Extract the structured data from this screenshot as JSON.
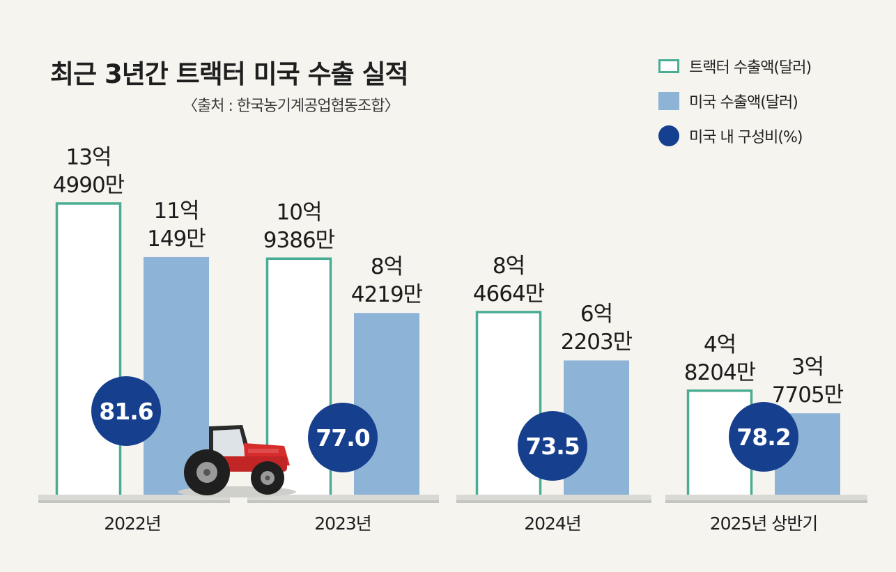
{
  "title": "최근 3년간 트랙터 미국 수출 실적",
  "source": "〈출처 : 한국농기계공업협동조합〉",
  "colors": {
    "tractor_outline": "#4aad93",
    "us_fill": "#8db3d6",
    "circle": "#163f8e",
    "background": "#f6f4ef"
  },
  "legend": [
    {
      "label": "트랙터 수출액(달러)",
      "icon": "outline-rect"
    },
    {
      "label": "미국 수출액(달러)",
      "icon": "filled-rect"
    },
    {
      "label": "미국 내 구성비(%)",
      "icon": "filled-circle"
    }
  ],
  "chart_data": {
    "type": "bar",
    "title": "최근 3년간 트랙터 미국 수출 실적",
    "subtitle": "〈출처 : 한국농기계공업협동조합〉",
    "categories": [
      "2022년",
      "2023년",
      "2024년",
      "2025년 상반기"
    ],
    "series": [
      {
        "name": "트랙터 수출액(달러)",
        "values": [
          1349900000,
          1093860000,
          846640000,
          482040000
        ],
        "labels": [
          [
            "13억",
            "4990만"
          ],
          [
            "10억",
            "9386만"
          ],
          [
            "8억",
            "4664만"
          ],
          [
            "4억",
            "8204만"
          ]
        ]
      },
      {
        "name": "미국 수출액(달러)",
        "values": [
          1101490000,
          842190000,
          622030000,
          377050000
        ],
        "labels": [
          [
            "11억",
            "149만"
          ],
          [
            "8억",
            "4219만"
          ],
          [
            "6억",
            "2203만"
          ],
          [
            "3억",
            "7705만"
          ]
        ]
      },
      {
        "name": "미국 내 구성비(%)",
        "values": [
          81.6,
          77.0,
          73.5,
          78.2
        ],
        "labels": [
          "81.6",
          "77.0",
          "73.5",
          "78.2"
        ]
      }
    ],
    "ylim": [
      0,
      1349900000
    ],
    "grid": false,
    "legend_position": "top-right"
  }
}
